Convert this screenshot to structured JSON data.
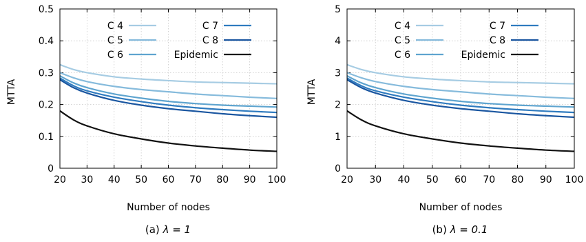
{
  "chart_data": [
    {
      "type": "line",
      "caption_prefix": "(a)",
      "caption_math": "λ = 1",
      "xlabel": "Number of nodes",
      "ylabel": "MTTA",
      "xlim": [
        20,
        100
      ],
      "ylim": [
        0,
        0.5
      ],
      "xticks": [
        "20",
        "30",
        "40",
        "50",
        "60",
        "70",
        "80",
        "90",
        "100"
      ],
      "yticks": [
        "0",
        "0.1",
        "0.2",
        "0.3",
        "0.4",
        "0.5"
      ],
      "grid": true,
      "legend": "top, two columns",
      "x": [
        20,
        25,
        30,
        40,
        50,
        60,
        70,
        80,
        90,
        100
      ],
      "series": [
        {
          "name": "C 4",
          "color": "#a6cce3",
          "values": [
            0.325,
            0.31,
            0.3,
            0.287,
            0.28,
            0.275,
            0.271,
            0.269,
            0.267,
            0.265
          ]
        },
        {
          "name": "C 5",
          "color": "#86bbdc",
          "values": [
            0.3,
            0.284,
            0.272,
            0.257,
            0.247,
            0.24,
            0.233,
            0.228,
            0.223,
            0.219
          ]
        },
        {
          "name": "C 6",
          "color": "#5ea4cf",
          "values": [
            0.29,
            0.268,
            0.253,
            0.233,
            0.22,
            0.21,
            0.203,
            0.198,
            0.195,
            0.192
          ]
        },
        {
          "name": "C 7",
          "color": "#2f7bbf",
          "values": [
            0.283,
            0.259,
            0.243,
            0.223,
            0.209,
            0.198,
            0.19,
            0.184,
            0.179,
            0.175
          ]
        },
        {
          "name": "C 8",
          "color": "#1a56a0",
          "values": [
            0.278,
            0.253,
            0.236,
            0.213,
            0.198,
            0.187,
            0.179,
            0.171,
            0.165,
            0.16
          ]
        },
        {
          "name": "Epidemic",
          "color": "#111111",
          "values": [
            0.18,
            0.152,
            0.133,
            0.108,
            0.092,
            0.079,
            0.07,
            0.063,
            0.057,
            0.053
          ]
        }
      ]
    },
    {
      "type": "line",
      "caption_prefix": "(b)",
      "caption_math": "λ = 0.1",
      "xlabel": "Number of nodes",
      "ylabel": "MTTA",
      "xlim": [
        20,
        100
      ],
      "ylim": [
        0,
        5
      ],
      "xticks": [
        "20",
        "30",
        "40",
        "50",
        "60",
        "70",
        "80",
        "90",
        "100"
      ],
      "yticks": [
        "0",
        "1",
        "2",
        "3",
        "4",
        "5"
      ],
      "grid": true,
      "legend": "top, two columns",
      "x": [
        20,
        25,
        30,
        40,
        50,
        60,
        70,
        80,
        90,
        100
      ],
      "series": [
        {
          "name": "C 4",
          "color": "#a6cce3",
          "values": [
            3.25,
            3.1,
            3.0,
            2.87,
            2.8,
            2.75,
            2.71,
            2.69,
            2.67,
            2.65
          ]
        },
        {
          "name": "C 5",
          "color": "#86bbdc",
          "values": [
            3.0,
            2.84,
            2.72,
            2.57,
            2.47,
            2.4,
            2.33,
            2.28,
            2.23,
            2.19
          ]
        },
        {
          "name": "C 6",
          "color": "#5ea4cf",
          "values": [
            2.9,
            2.68,
            2.53,
            2.33,
            2.2,
            2.1,
            2.03,
            1.98,
            1.95,
            1.92
          ]
        },
        {
          "name": "C 7",
          "color": "#2f7bbf",
          "values": [
            2.83,
            2.59,
            2.43,
            2.23,
            2.09,
            1.98,
            1.9,
            1.84,
            1.79,
            1.75
          ]
        },
        {
          "name": "C 8",
          "color": "#1a56a0",
          "values": [
            2.78,
            2.53,
            2.36,
            2.13,
            1.98,
            1.87,
            1.79,
            1.71,
            1.65,
            1.6
          ]
        },
        {
          "name": "Epidemic",
          "color": "#111111",
          "values": [
            1.8,
            1.52,
            1.33,
            1.08,
            0.92,
            0.79,
            0.7,
            0.63,
            0.57,
            0.53
          ]
        }
      ]
    }
  ]
}
